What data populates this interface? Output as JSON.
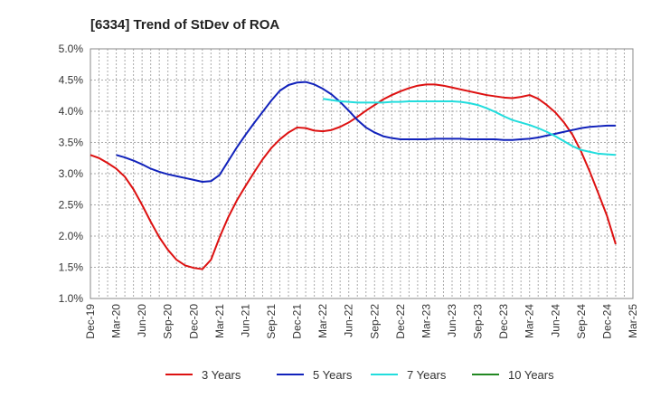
{
  "chart_data": {
    "type": "line",
    "title": "[6334]  Trend of StDev of ROA",
    "xlabel": "",
    "ylabel": "",
    "x_tick_labels": [
      "Dec-19",
      "Mar-20",
      "Jun-20",
      "Sep-20",
      "Dec-20",
      "Mar-21",
      "Jun-21",
      "Sep-21",
      "Dec-21",
      "Mar-22",
      "Jun-22",
      "Sep-22",
      "Dec-22",
      "Mar-23",
      "Jun-23",
      "Sep-23",
      "Dec-23",
      "Mar-24",
      "Jun-24",
      "Sep-24",
      "Dec-24",
      "Mar-25"
    ],
    "y_tick_labels": [
      "1.0%",
      "1.5%",
      "2.0%",
      "2.5%",
      "3.0%",
      "3.5%",
      "4.0%",
      "4.5%",
      "5.0%"
    ],
    "ylim": [
      1.0,
      5.0
    ],
    "grid": true,
    "legend_position": "bottom",
    "series": [
      {
        "name": "3 Years",
        "color": "#dd1111",
        "points": [
          [
            "Dec-19",
            3.3
          ],
          [
            "Jan-20",
            3.25
          ],
          [
            "Feb-20",
            3.17
          ],
          [
            "Mar-20",
            3.08
          ],
          [
            "Apr-20",
            2.95
          ],
          [
            "May-20",
            2.75
          ],
          [
            "Jun-20",
            2.5
          ],
          [
            "Jul-20",
            2.23
          ],
          [
            "Aug-20",
            1.98
          ],
          [
            "Sep-20",
            1.78
          ],
          [
            "Oct-20",
            1.62
          ],
          [
            "Nov-20",
            1.53
          ],
          [
            "Dec-20",
            1.49
          ],
          [
            "Jan-21",
            1.47
          ],
          [
            "Feb-21",
            1.62
          ],
          [
            "Mar-21",
            1.98
          ],
          [
            "Apr-21",
            2.3
          ],
          [
            "May-21",
            2.57
          ],
          [
            "Jun-21",
            2.8
          ],
          [
            "Jul-21",
            3.02
          ],
          [
            "Aug-21",
            3.23
          ],
          [
            "Sep-21",
            3.41
          ],
          [
            "Oct-21",
            3.55
          ],
          [
            "Nov-21",
            3.66
          ],
          [
            "Dec-21",
            3.74
          ],
          [
            "Jan-22",
            3.73
          ],
          [
            "Feb-22",
            3.69
          ],
          [
            "Mar-22",
            3.68
          ],
          [
            "Apr-22",
            3.7
          ],
          [
            "May-22",
            3.75
          ],
          [
            "Jun-22",
            3.82
          ],
          [
            "Jul-22",
            3.91
          ],
          [
            "Aug-22",
            4.01
          ],
          [
            "Sep-22",
            4.1
          ],
          [
            "Oct-22",
            4.19
          ],
          [
            "Nov-22",
            4.26
          ],
          [
            "Dec-22",
            4.32
          ],
          [
            "Jan-23",
            4.37
          ],
          [
            "Feb-23",
            4.41
          ],
          [
            "Mar-23",
            4.43
          ],
          [
            "Apr-23",
            4.43
          ],
          [
            "May-23",
            4.41
          ],
          [
            "Jun-23",
            4.38
          ],
          [
            "Jul-23",
            4.35
          ],
          [
            "Aug-23",
            4.32
          ],
          [
            "Sep-23",
            4.29
          ],
          [
            "Oct-23",
            4.26
          ],
          [
            "Nov-23",
            4.24
          ],
          [
            "Dec-23",
            4.22
          ],
          [
            "Jan-24",
            4.21
          ],
          [
            "Feb-24",
            4.23
          ],
          [
            "Mar-24",
            4.26
          ],
          [
            "Apr-24",
            4.2
          ],
          [
            "May-24",
            4.1
          ],
          [
            "Jun-24",
            3.98
          ],
          [
            "Jul-24",
            3.82
          ],
          [
            "Aug-24",
            3.62
          ],
          [
            "Sep-24",
            3.35
          ],
          [
            "Oct-24",
            3.03
          ],
          [
            "Nov-24",
            2.68
          ],
          [
            "Dec-24",
            2.32
          ],
          [
            "Jan-25",
            1.87
          ]
        ]
      },
      {
        "name": "5 Years",
        "color": "#1122bb",
        "points": [
          [
            "Mar-20",
            3.3
          ],
          [
            "Apr-20",
            3.26
          ],
          [
            "May-20",
            3.21
          ],
          [
            "Jun-20",
            3.15
          ],
          [
            "Jul-20",
            3.08
          ],
          [
            "Aug-20",
            3.03
          ],
          [
            "Sep-20",
            2.99
          ],
          [
            "Oct-20",
            2.96
          ],
          [
            "Nov-20",
            2.93
          ],
          [
            "Dec-20",
            2.9
          ],
          [
            "Jan-21",
            2.87
          ],
          [
            "Feb-21",
            2.88
          ],
          [
            "Mar-21",
            2.98
          ],
          [
            "Apr-21",
            3.2
          ],
          [
            "May-21",
            3.42
          ],
          [
            "Jun-21",
            3.62
          ],
          [
            "Jul-21",
            3.81
          ],
          [
            "Aug-21",
            3.99
          ],
          [
            "Sep-21",
            4.17
          ],
          [
            "Oct-21",
            4.33
          ],
          [
            "Nov-21",
            4.42
          ],
          [
            "Dec-21",
            4.46
          ],
          [
            "Jan-22",
            4.47
          ],
          [
            "Feb-22",
            4.43
          ],
          [
            "Mar-22",
            4.36
          ],
          [
            "Apr-22",
            4.27
          ],
          [
            "May-22",
            4.15
          ],
          [
            "Jun-22",
            4.01
          ],
          [
            "Jul-22",
            3.86
          ],
          [
            "Aug-22",
            3.74
          ],
          [
            "Sep-22",
            3.66
          ],
          [
            "Oct-22",
            3.6
          ],
          [
            "Nov-22",
            3.57
          ],
          [
            "Dec-22",
            3.55
          ],
          [
            "Jan-23",
            3.55
          ],
          [
            "Feb-23",
            3.55
          ],
          [
            "Mar-23",
            3.55
          ],
          [
            "Apr-23",
            3.56
          ],
          [
            "May-23",
            3.56
          ],
          [
            "Jun-23",
            3.56
          ],
          [
            "Jul-23",
            3.56
          ],
          [
            "Aug-23",
            3.55
          ],
          [
            "Sep-23",
            3.55
          ],
          [
            "Oct-23",
            3.55
          ],
          [
            "Nov-23",
            3.55
          ],
          [
            "Dec-23",
            3.54
          ],
          [
            "Jan-24",
            3.54
          ],
          [
            "Feb-24",
            3.55
          ],
          [
            "Mar-24",
            3.56
          ],
          [
            "Apr-24",
            3.58
          ],
          [
            "May-24",
            3.61
          ],
          [
            "Jun-24",
            3.64
          ],
          [
            "Jul-24",
            3.67
          ],
          [
            "Aug-24",
            3.7
          ],
          [
            "Sep-24",
            3.73
          ],
          [
            "Oct-24",
            3.75
          ],
          [
            "Nov-24",
            3.76
          ],
          [
            "Dec-24",
            3.77
          ],
          [
            "Jan-25",
            3.77
          ]
        ]
      },
      {
        "name": "7 Years",
        "color": "#22dddd",
        "points": [
          [
            "Mar-22",
            4.2
          ],
          [
            "Apr-22",
            4.18
          ],
          [
            "May-22",
            4.16
          ],
          [
            "Jun-22",
            4.15
          ],
          [
            "Jul-22",
            4.14
          ],
          [
            "Aug-22",
            4.14
          ],
          [
            "Sep-22",
            4.14
          ],
          [
            "Oct-22",
            4.14
          ],
          [
            "Nov-22",
            4.15
          ],
          [
            "Dec-22",
            4.15
          ],
          [
            "Jan-23",
            4.16
          ],
          [
            "Feb-23",
            4.16
          ],
          [
            "Mar-23",
            4.16
          ],
          [
            "Apr-23",
            4.16
          ],
          [
            "May-23",
            4.16
          ],
          [
            "Jun-23",
            4.16
          ],
          [
            "Jul-23",
            4.15
          ],
          [
            "Aug-23",
            4.13
          ],
          [
            "Sep-23",
            4.1
          ],
          [
            "Oct-23",
            4.05
          ],
          [
            "Nov-23",
            3.99
          ],
          [
            "Dec-23",
            3.92
          ],
          [
            "Jan-24",
            3.86
          ],
          [
            "Feb-24",
            3.82
          ],
          [
            "Mar-24",
            3.78
          ],
          [
            "Apr-24",
            3.73
          ],
          [
            "May-24",
            3.67
          ],
          [
            "Jun-24",
            3.6
          ],
          [
            "Jul-24",
            3.52
          ],
          [
            "Aug-24",
            3.44
          ],
          [
            "Sep-24",
            3.38
          ],
          [
            "Oct-24",
            3.35
          ],
          [
            "Nov-24",
            3.32
          ],
          [
            "Dec-24",
            3.31
          ],
          [
            "Jan-25",
            3.3
          ]
        ]
      },
      {
        "name": "10 Years",
        "color": "#228822",
        "points": []
      }
    ]
  }
}
